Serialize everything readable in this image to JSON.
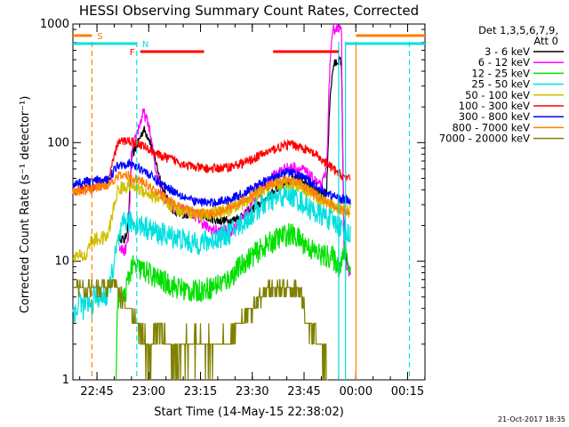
{
  "chart_data": {
    "type": "line",
    "title": "HESSI Observing Summary Count Rates, Corrected",
    "xlabel": "Start Time (14-May-15 22:38:02)",
    "ylabel": "Corrected Count Rate (s⁻¹ detector⁻¹)",
    "ylog": true,
    "ylim": [
      1,
      1000
    ],
    "xlim_minutes": [
      0,
      102
    ],
    "x_tick_labels": [
      "22:45",
      "23:00",
      "23:15",
      "23:30",
      "23:45",
      "00:00",
      "00:15"
    ],
    "x_tick_minutes": [
      6.97,
      21.97,
      36.97,
      51.97,
      66.97,
      81.97,
      96.97
    ],
    "y_tick_labels": [
      "1",
      "10",
      "100",
      "1000"
    ],
    "y_tick_values": [
      1,
      10,
      100,
      1000
    ],
    "legend_header": [
      "Det 1,3,5,6,7,9,",
      "Att 0"
    ],
    "legend_position": "right, outside plot",
    "date_stamp": "21-Oct-2017 18:35",
    "flags": [
      {
        "label": "S",
        "color": "#ff8000",
        "start": 0,
        "end": 5.5
      },
      {
        "label": "S",
        "color": "#ff8000",
        "start": 82,
        "end": 102
      },
      {
        "label": "N",
        "color": "#00e0e0",
        "start": 0,
        "end": 18.5
      },
      {
        "label": "N",
        "color": "#00e0e0",
        "start": 79,
        "end": 102
      },
      {
        "label": "F",
        "color": "#ff0000",
        "start": 19.5,
        "end": 38
      },
      {
        "label": "F",
        "color": "#ff0000",
        "start": 58,
        "end": 77
      }
    ],
    "vertical_markers": [
      {
        "minute": 5.5,
        "color": "#ff8000"
      },
      {
        "minute": 18.5,
        "color": "#00e0e0"
      },
      {
        "minute": 77,
        "color": "#00e0e0"
      },
      {
        "minute": 79,
        "color": "#00e0e0"
      },
      {
        "minute": 82,
        "color": "#ff8000"
      },
      {
        "minute": 97.5,
        "color": "#00e0e0"
      }
    ],
    "series": [
      {
        "name": "3 - 6 keV",
        "color": "#000000",
        "points": [
          [
            13.5,
            16
          ],
          [
            15,
            15
          ],
          [
            16,
            20
          ],
          [
            17,
            75
          ],
          [
            18.5,
            95
          ],
          [
            20.5,
            130
          ],
          [
            22,
            110
          ],
          [
            24,
            70
          ],
          [
            26,
            40
          ],
          [
            28,
            30
          ],
          [
            30,
            25
          ],
          [
            32,
            25
          ],
          [
            35,
            25
          ],
          [
            38,
            24
          ],
          [
            42,
            22
          ],
          [
            46,
            22
          ],
          [
            50,
            25
          ],
          [
            54,
            30
          ],
          [
            58,
            38
          ],
          [
            61,
            45
          ],
          [
            64,
            50
          ],
          [
            67,
            48
          ],
          [
            70,
            42
          ],
          [
            72,
            35
          ],
          [
            73.5,
            40
          ],
          [
            74.5,
            250
          ],
          [
            75.5,
            450
          ],
          [
            77,
            500
          ],
          [
            77.8,
            480
          ],
          [
            78.5,
            20
          ],
          [
            79.5,
            9
          ],
          [
            80.5,
            8
          ]
        ]
      },
      {
        "name": "6 - 12 keV",
        "color": "#ff00ff",
        "points": [
          [
            13.5,
            13
          ],
          [
            15,
            12
          ],
          [
            16,
            15
          ],
          [
            17,
            80
          ],
          [
            18.5,
            120
          ],
          [
            20.5,
            180
          ],
          [
            22,
            140
          ],
          [
            24,
            60
          ],
          [
            26,
            36
          ],
          [
            28,
            30
          ],
          [
            30,
            27
          ],
          [
            32,
            28
          ],
          [
            35,
            25
          ],
          [
            37,
            22
          ],
          [
            39,
            19
          ],
          [
            42,
            18
          ],
          [
            46,
            18
          ],
          [
            50,
            25
          ],
          [
            54,
            38
          ],
          [
            58,
            52
          ],
          [
            61,
            60
          ],
          [
            64,
            62
          ],
          [
            67,
            58
          ],
          [
            70,
            48
          ],
          [
            72,
            42
          ],
          [
            73.5,
            60
          ],
          [
            74.5,
            500
          ],
          [
            75.5,
            900
          ],
          [
            77,
            950
          ],
          [
            77.8,
            850
          ],
          [
            78.5,
            15
          ],
          [
            79.5,
            8
          ],
          [
            80.5,
            8
          ]
        ]
      },
      {
        "name": "12 - 25 keV",
        "color": "#00e000",
        "points": [
          [
            12.5,
            1
          ],
          [
            13,
            5
          ],
          [
            15,
            5
          ],
          [
            16,
            7
          ],
          [
            17,
            9
          ],
          [
            20,
            8.5
          ],
          [
            25,
            7
          ],
          [
            30,
            6
          ],
          [
            35,
            5.5
          ],
          [
            40,
            6
          ],
          [
            45,
            7
          ],
          [
            50,
            10
          ],
          [
            55,
            13
          ],
          [
            60,
            16
          ],
          [
            63,
            17
          ],
          [
            66,
            15
          ],
          [
            70,
            12
          ],
          [
            73,
            11
          ],
          [
            75,
            11
          ],
          [
            77,
            9
          ],
          [
            78.5,
            11
          ],
          [
            79,
            15
          ],
          [
            79.5,
            10
          ],
          [
            80.5,
            8
          ]
        ]
      },
      {
        "name": "25 - 50 keV",
        "color": "#00e0e0",
        "points": [
          [
            0,
            4
          ],
          [
            1,
            3.5
          ],
          [
            2,
            5
          ],
          [
            3,
            4
          ],
          [
            4,
            4.5
          ],
          [
            5.5,
            4
          ],
          [
            6,
            5
          ],
          [
            10,
            5
          ],
          [
            13,
            14
          ],
          [
            15,
            22
          ],
          [
            20,
            20
          ],
          [
            25,
            17
          ],
          [
            30,
            16
          ],
          [
            35,
            14
          ],
          [
            40,
            15
          ],
          [
            45,
            17
          ],
          [
            50,
            22
          ],
          [
            55,
            30
          ],
          [
            60,
            35
          ],
          [
            63,
            36
          ],
          [
            66,
            32
          ],
          [
            70,
            26
          ],
          [
            73,
            24
          ],
          [
            75,
            22
          ],
          [
            77,
            20
          ],
          [
            79,
            18
          ],
          [
            80.5,
            16
          ]
        ]
      },
      {
        "name": "50 - 100 keV",
        "color": "#d0c000",
        "points": [
          [
            0,
            11
          ],
          [
            4,
            11
          ],
          [
            4.5,
            14
          ],
          [
            6,
            15
          ],
          [
            10,
            16
          ],
          [
            13,
            40
          ],
          [
            16,
            44
          ],
          [
            20,
            40
          ],
          [
            25,
            33
          ],
          [
            30,
            28
          ],
          [
            35,
            25
          ],
          [
            40,
            25
          ],
          [
            45,
            27
          ],
          [
            50,
            32
          ],
          [
            55,
            40
          ],
          [
            60,
            45
          ],
          [
            63,
            46
          ],
          [
            66,
            43
          ],
          [
            70,
            36
          ],
          [
            73,
            32
          ],
          [
            77,
            28
          ],
          [
            80.5,
            26
          ]
        ]
      },
      {
        "name": "100 - 300 keV",
        "color": "#ff0000",
        "points": [
          [
            0,
            38
          ],
          [
            4,
            42
          ],
          [
            5,
            40
          ],
          [
            10,
            45
          ],
          [
            13,
            100
          ],
          [
            16,
            105
          ],
          [
            20,
            95
          ],
          [
            25,
            78
          ],
          [
            30,
            70
          ],
          [
            35,
            62
          ],
          [
            40,
            60
          ],
          [
            45,
            62
          ],
          [
            50,
            68
          ],
          [
            55,
            80
          ],
          [
            60,
            92
          ],
          [
            63,
            97
          ],
          [
            66,
            92
          ],
          [
            70,
            80
          ],
          [
            73,
            68
          ],
          [
            77,
            55
          ],
          [
            80.5,
            48
          ]
        ]
      },
      {
        "name": "300 - 800 keV",
        "color": "#0000ff",
        "points": [
          [
            0,
            45
          ],
          [
            4,
            47
          ],
          [
            10,
            48
          ],
          [
            13,
            65
          ],
          [
            16,
            67
          ],
          [
            20,
            60
          ],
          [
            25,
            46
          ],
          [
            30,
            38
          ],
          [
            35,
            32
          ],
          [
            40,
            31
          ],
          [
            45,
            33
          ],
          [
            50,
            38
          ],
          [
            55,
            46
          ],
          [
            60,
            55
          ],
          [
            63,
            56
          ],
          [
            66,
            52
          ],
          [
            70,
            44
          ],
          [
            73,
            38
          ],
          [
            77,
            34
          ],
          [
            80.5,
            32
          ]
        ]
      },
      {
        "name": "800 - 7000 keV",
        "color": "#ff8000",
        "points": [
          [
            0,
            38
          ],
          [
            4,
            40
          ],
          [
            10,
            44
          ],
          [
            13,
            52
          ],
          [
            16,
            53
          ],
          [
            20,
            47
          ],
          [
            25,
            37
          ],
          [
            30,
            30
          ],
          [
            35,
            26
          ],
          [
            40,
            25
          ],
          [
            45,
            28
          ],
          [
            50,
            33
          ],
          [
            55,
            41
          ],
          [
            60,
            47
          ],
          [
            63,
            48
          ],
          [
            66,
            45
          ],
          [
            70,
            37
          ],
          [
            73,
            32
          ],
          [
            77,
            28
          ],
          [
            80.5,
            25
          ]
        ]
      },
      {
        "name": "7000 - 20000 keV",
        "color": "#808000",
        "points": [
          [
            0,
            6
          ],
          [
            9,
            6
          ],
          [
            12,
            6.5
          ],
          [
            14,
            5
          ],
          [
            16,
            4
          ],
          [
            18,
            3
          ],
          [
            20,
            2.5
          ],
          [
            21.5,
            1.8
          ],
          [
            22.5,
            1.4
          ],
          [
            23,
            2
          ],
          [
            24,
            2.8
          ],
          [
            28,
            2
          ],
          [
            30,
            1.5
          ],
          [
            33,
            2
          ],
          [
            40,
            2
          ],
          [
            45,
            2
          ],
          [
            47,
            2.5
          ],
          [
            48,
            3
          ],
          [
            50,
            3.5
          ],
          [
            53,
            4.5
          ],
          [
            55,
            5
          ],
          [
            57,
            6
          ],
          [
            60,
            6
          ],
          [
            63,
            6
          ],
          [
            66,
            5.5
          ],
          [
            67,
            4
          ],
          [
            68,
            3
          ],
          [
            70,
            2.5
          ],
          [
            72,
            1.8
          ],
          [
            73,
            1.4
          ],
          [
            74,
            1
          ]
        ]
      }
    ]
  }
}
